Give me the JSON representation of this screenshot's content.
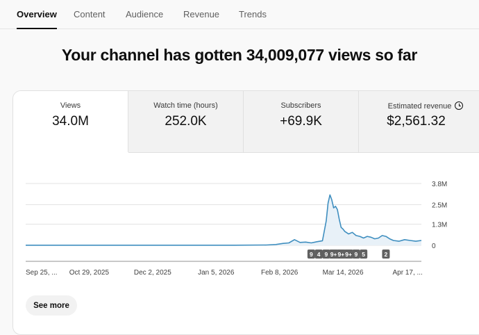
{
  "tabs": [
    {
      "label": "Overview"
    },
    {
      "label": "Content"
    },
    {
      "label": "Audience"
    },
    {
      "label": "Revenue"
    },
    {
      "label": "Trends"
    }
  ],
  "headline": "Your channel has gotten 34,009,077 views so far",
  "metrics": [
    {
      "label": "Views",
      "value": "34.0M"
    },
    {
      "label": "Watch time (hours)",
      "value": "252.0K"
    },
    {
      "label": "Subscribers",
      "value": "+69.9K"
    },
    {
      "label": "Estimated revenue",
      "value": "$2,561.32",
      "icon": "clock-icon"
    }
  ],
  "chart_data": {
    "type": "line",
    "y_tick_labels": [
      "0",
      "1.3M",
      "2.5M",
      "3.8M"
    ],
    "y_tick_values": [
      0,
      1.3,
      2.5,
      3.8
    ],
    "x_tick_labels": [
      "Sep 25, ...",
      "Oct 29, 2025",
      "Dec 2, 2025",
      "Jan 5, 2026",
      "Feb 8, 2026",
      "Mar 14, 2026",
      "Apr 17, ..."
    ],
    "x_tick_dates": [
      "2025-09-25",
      "2025-10-29",
      "2025-12-02",
      "2026-01-05",
      "2026-02-08",
      "2026-03-14",
      "2026-04-17"
    ],
    "x_range": [
      "2025-09-25",
      "2026-04-25"
    ],
    "ylim": [
      0,
      3.8
    ],
    "grid": true,
    "series": [
      {
        "color": "#3e8ebf",
        "x": [
          "2025-09-25",
          "2025-10-15",
          "2025-11-15",
          "2025-12-15",
          "2026-01-15",
          "2026-02-01",
          "2026-02-06",
          "2026-02-10",
          "2026-02-13",
          "2026-02-16",
          "2026-02-19",
          "2026-02-22",
          "2026-02-25",
          "2026-02-28",
          "2026-03-03",
          "2026-03-05",
          "2026-03-06",
          "2026-03-07",
          "2026-03-08",
          "2026-03-09",
          "2026-03-10",
          "2026-03-11",
          "2026-03-12",
          "2026-03-13",
          "2026-03-14",
          "2026-03-15",
          "2026-03-17",
          "2026-03-19",
          "2026-03-21",
          "2026-03-23",
          "2026-03-25",
          "2026-03-27",
          "2026-03-29",
          "2026-03-31",
          "2026-04-02",
          "2026-04-04",
          "2026-04-06",
          "2026-04-08",
          "2026-04-10",
          "2026-04-13",
          "2026-04-16",
          "2026-04-19",
          "2026-04-22",
          "2026-04-25"
        ],
        "values": [
          0.01,
          0.01,
          0.01,
          0.01,
          0.01,
          0.02,
          0.05,
          0.12,
          0.15,
          0.35,
          0.18,
          0.2,
          0.15,
          0.22,
          0.28,
          1.5,
          2.6,
          3.1,
          2.8,
          2.3,
          2.4,
          2.2,
          1.6,
          1.1,
          1.0,
          0.85,
          0.7,
          0.8,
          0.6,
          0.55,
          0.45,
          0.55,
          0.5,
          0.4,
          0.45,
          0.6,
          0.55,
          0.4,
          0.3,
          0.25,
          0.35,
          0.3,
          0.25,
          0.3
        ]
      }
    ],
    "markers": [
      {
        "x": "2026-02-25",
        "label": "9"
      },
      {
        "x": "2026-03-01",
        "label": "4"
      },
      {
        "x": "2026-03-05",
        "label": "9"
      },
      {
        "x": "2026-03-09",
        "label": "9+"
      },
      {
        "x": "2026-03-13",
        "label": "9+"
      },
      {
        "x": "2026-03-17",
        "label": "9+"
      },
      {
        "x": "2026-03-21",
        "label": "9"
      },
      {
        "x": "2026-03-25",
        "label": "5"
      },
      {
        "x": "2026-04-06",
        "label": "2"
      }
    ]
  },
  "actions": {
    "see_more": "See more"
  }
}
